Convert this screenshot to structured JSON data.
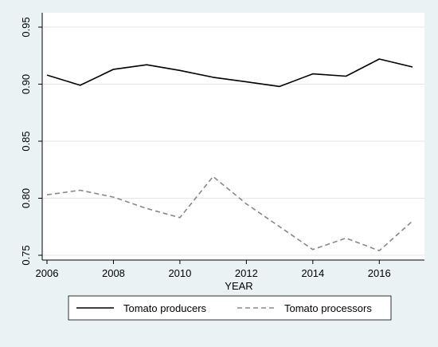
{
  "chart_data": {
    "type": "line",
    "xlabel": "YEAR",
    "ylabel": "",
    "xlim": [
      2006,
      2017
    ],
    "ylim": [
      0.75,
      0.95
    ],
    "x_ticks": [
      2006,
      2008,
      2010,
      2012,
      2014,
      2016
    ],
    "x_tick_labels": [
      "2006",
      "2008",
      "2010",
      "2012",
      "2014",
      "2016"
    ],
    "y_ticks": [
      0.75,
      0.8,
      0.85,
      0.9,
      0.95
    ],
    "y_tick_labels": [
      "0.75",
      "0.80",
      "0.85",
      "0.90",
      "0.95"
    ],
    "grid": "horizontal",
    "legend_position": "bottom",
    "x": [
      2006,
      2007,
      2008,
      2009,
      2010,
      2011,
      2012,
      2013,
      2014,
      2015,
      2016,
      2017
    ],
    "series": [
      {
        "name": "Tomato producers",
        "style": "solid",
        "color": "#000000",
        "values": [
          0.908,
          0.899,
          0.913,
          0.917,
          0.912,
          0.906,
          0.902,
          0.898,
          0.909,
          0.907,
          0.922,
          0.915
        ]
      },
      {
        "name": "Tomato processors",
        "style": "dashed",
        "color": "#888888",
        "values": [
          0.803,
          0.807,
          0.801,
          0.791,
          0.783,
          0.819,
          0.795,
          0.775,
          0.755,
          0.765,
          0.754,
          0.78
        ]
      }
    ]
  },
  "colors": {
    "outer_background": "#eaf2f3",
    "plot_background": "#ffffff",
    "grid": "#e5e5e5"
  }
}
